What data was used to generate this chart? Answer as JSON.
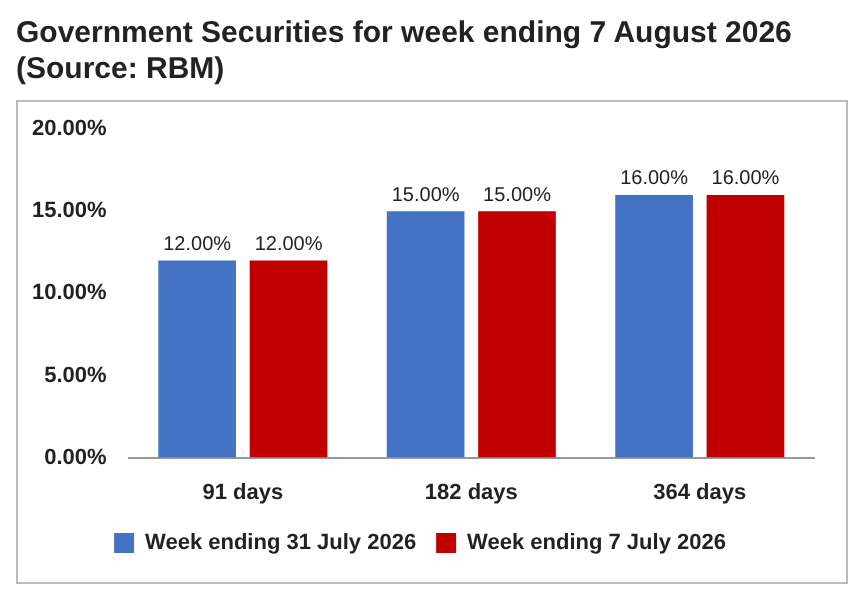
{
  "chart_data": {
    "type": "bar",
    "title": "Government Securities for week ending 7 August 2026 (Source: RBM)",
    "categories": [
      "91 days",
      "182 days",
      "364 days"
    ],
    "series": [
      {
        "name": "Week ending 31 July 2026",
        "color": "#4472c4",
        "values": [
          12,
          15,
          16
        ],
        "value_labels": [
          "12.00%",
          "15.00%",
          "16.00%"
        ]
      },
      {
        "name": "Week ending 7 July 2026",
        "color": "#c00000",
        "values": [
          12,
          15,
          16
        ],
        "value_labels": [
          "12.00%",
          "15.00%",
          "16.00%"
        ]
      }
    ],
    "ylim": [
      0,
      20
    ],
    "yticks": [
      {
        "value": 0,
        "label": "0.00%"
      },
      {
        "value": 5,
        "label": "5.00%"
      },
      {
        "value": 10,
        "label": "10.00%"
      },
      {
        "value": 15,
        "label": "15.00%"
      },
      {
        "value": 20,
        "label": "20.00%"
      }
    ],
    "grid": false,
    "legend": "bottom"
  }
}
